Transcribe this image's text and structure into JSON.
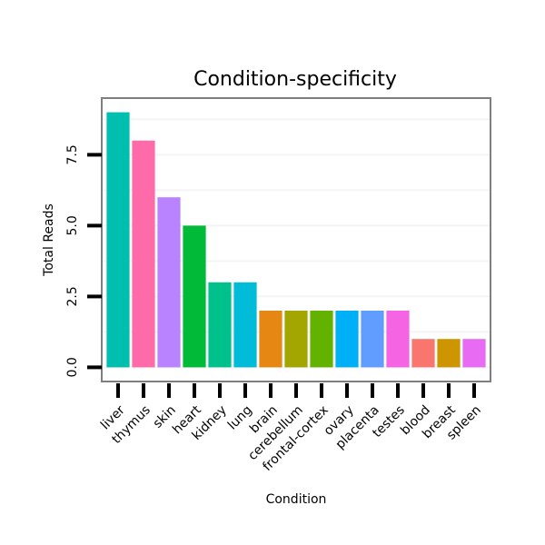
{
  "chart_data": {
    "type": "bar",
    "title": "Condition-specificity",
    "xlabel": "Condition",
    "ylabel": "Total Reads",
    "ylim": [
      -0.5,
      9.5
    ],
    "yticks": [
      0.0,
      2.5,
      5.0,
      7.5
    ],
    "ytick_labels": [
      "0.0",
      "2.5",
      "5.0",
      "7.5"
    ],
    "grid": true,
    "categories": [
      "liver",
      "thymus",
      "skin",
      "heart",
      "kidney",
      "lung",
      "brain",
      "cerebellum",
      "frontal-cortex",
      "ovary",
      "placenta",
      "testes",
      "blood",
      "breast",
      "spleen"
    ],
    "values": [
      9,
      8,
      6,
      5,
      3,
      3,
      2,
      2,
      2,
      2,
      2,
      2,
      1,
      1,
      1
    ],
    "colors": [
      "#00BFAE",
      "#FF6BA8",
      "#B983FF",
      "#00BA38",
      "#00C08B",
      "#00BCD8",
      "#E68613",
      "#A3A500",
      "#64B200",
      "#00B0F6",
      "#619CFF",
      "#F564E3",
      "#F8766D",
      "#CD9600",
      "#E76BF3"
    ]
  }
}
